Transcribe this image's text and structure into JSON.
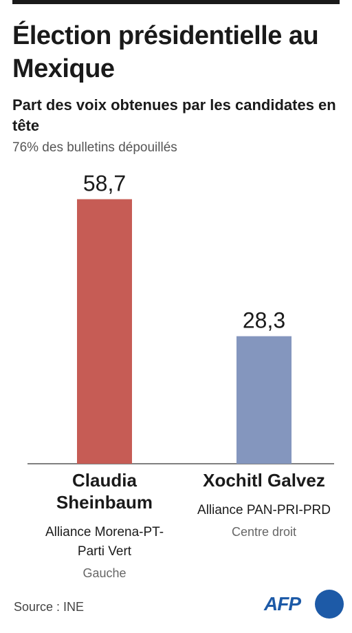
{
  "title": "Élection présidentielle au Mexique",
  "subtitle": "Part des voix obtenues par les candidates en tête",
  "note": "76% des bulletins dépouillés",
  "source": "Source : INE",
  "logo": "AFP",
  "candidates": [
    {
      "name": "Claudia Sheinbaum",
      "alliance": "Alliance Morena-PT-Parti Vert",
      "side": "Gauche"
    },
    {
      "name": "Xochitl Galvez",
      "alliance": "Alliance PAN-PRI-PRD",
      "side": "Centre droit"
    }
  ],
  "chart_data": {
    "type": "bar",
    "categories": [
      "Claudia Sheinbaum",
      "Xochitl Galvez"
    ],
    "values": [
      58.7,
      28.3
    ],
    "value_labels": [
      "58,7",
      "28,3"
    ],
    "colors": [
      "#c65c55",
      "#8496be"
    ],
    "ylim": [
      0,
      100
    ],
    "grid": false,
    "title": "Élection présidentielle au Mexique",
    "xlabel": "",
    "ylabel": ""
  }
}
